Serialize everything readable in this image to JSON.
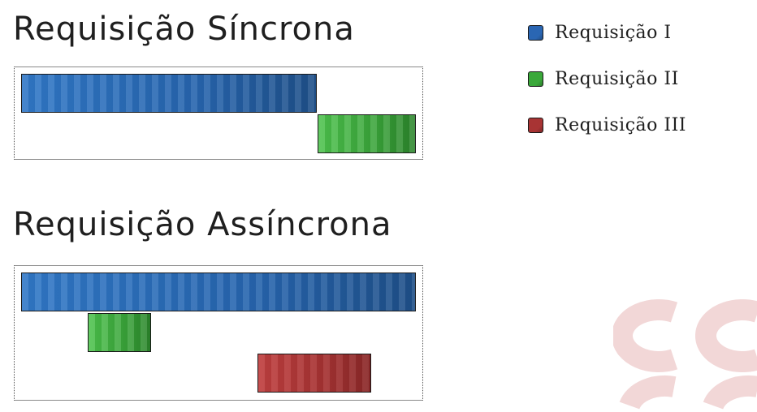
{
  "titles": {
    "sync": "Requisição Síncrona",
    "async": "Requisição Assíncrona"
  },
  "legend": {
    "items": [
      {
        "label": "Requisição I",
        "color": "#2a66b3"
      },
      {
        "label": "Requisição II",
        "color": "#3aa83a"
      },
      {
        "label": "Requisição III",
        "color": "#a83434"
      }
    ]
  },
  "timelines": {
    "sync": [
      {
        "request": "Requisição I",
        "start": 0,
        "end": 0.748
      },
      {
        "request": "Requisição II",
        "start": 0.752,
        "end": 1.0
      }
    ],
    "async": [
      {
        "request": "Requisição I",
        "start": 0,
        "end": 1.0
      },
      {
        "request": "Requisição II",
        "start": 0.168,
        "end": 0.33
      },
      {
        "request": "Requisição III",
        "start": 0.598,
        "end": 0.886
      }
    ]
  },
  "watermark": {
    "color": "#f2d7d7"
  }
}
